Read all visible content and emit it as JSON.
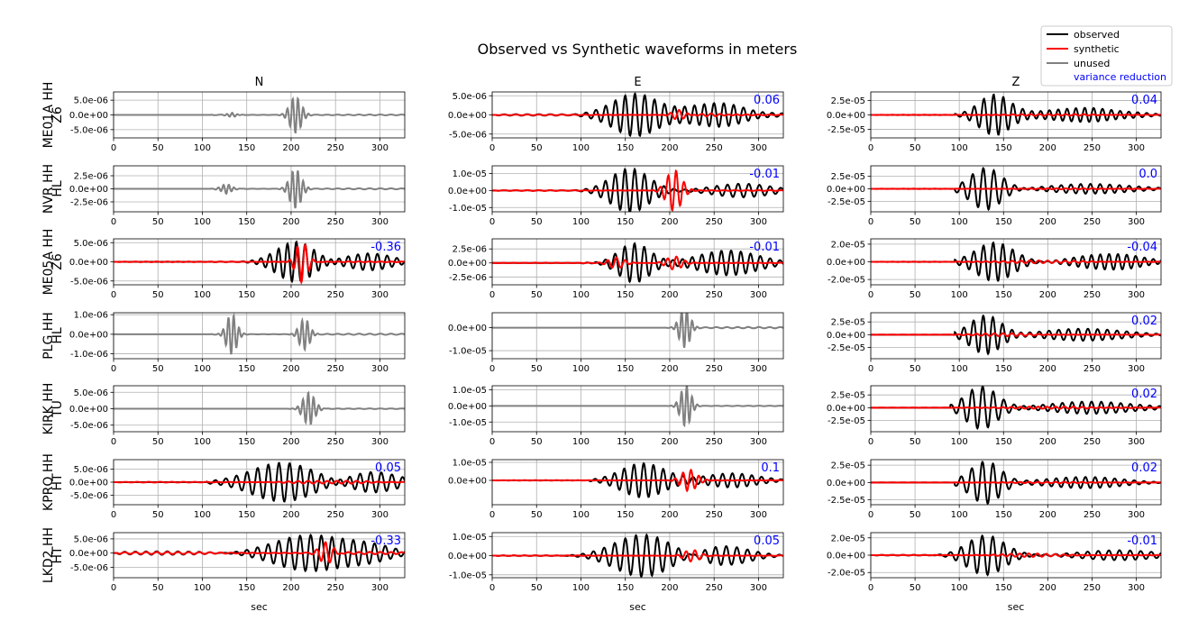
{
  "chart_data": {
    "type": "line",
    "title": "Observed vs Synthetic waveforms in meters",
    "component_titles": [
      "N",
      "E",
      "Z"
    ],
    "xlabel": "sec",
    "xlim": [
      0,
      328
    ],
    "xticks": [
      0,
      50,
      100,
      150,
      200,
      250,
      300
    ],
    "legend": {
      "placement": "top-right",
      "entries": [
        {
          "label": "observed",
          "color": "#000000"
        },
        {
          "label": "synthetic",
          "color": "#ff0000"
        },
        {
          "label": "unused",
          "color": "#808080"
        },
        {
          "label": "variance reduction",
          "color": "#0000ff"
        }
      ]
    },
    "grid": true,
    "stations": [
      {
        "label_line1": "Z6",
        "label_line2": "ME01A HH"
      },
      {
        "label_line1": "HL",
        "label_line2": "NVR HH"
      },
      {
        "label_line1": "Z6",
        "label_line2": "ME05A HH"
      },
      {
        "label_line1": "HL",
        "label_line2": "PLG HH"
      },
      {
        "label_line1": "TU",
        "label_line2": "KIRK HH"
      },
      {
        "label_line1": "HT",
        "label_line2": "KPRO HH"
      },
      {
        "label_line1": "HT",
        "label_line2": "LKD2 HH"
      }
    ],
    "panels": [
      {
        "row": 0,
        "col": 0,
        "used": false,
        "ylim": [
          -7.8e-06,
          7.8e-06
        ],
        "yticks": [
          5e-06,
          0,
          -5e-06
        ],
        "yticklabels": [
          "5.0e-06",
          "0.0e+00",
          "-5.0e-06"
        ],
        "vr": "",
        "obs": {
          "start": 110,
          "bursts": [
            [
              205,
              9,
              6.2e-06,
              6
            ],
            [
              133,
              7,
              7e-07,
              6
            ]
          ],
          "noise": 1.5e-07,
          "period": 12
        },
        "syn": null
      },
      {
        "row": 0,
        "col": 1,
        "used": true,
        "ylim": [
          -6e-06,
          6e-06
        ],
        "yticks": [
          5e-06,
          0,
          -5e-06
        ],
        "yticklabels": [
          "5.0e-06",
          "0.0e+00",
          "-5.0e-06"
        ],
        "vr": "0.06",
        "obs": {
          "start": 5,
          "bursts": [
            [
              160,
              35,
              5.5e-06,
              11
            ],
            [
              250,
              50,
              3e-06,
              11
            ]
          ],
          "noise": 2e-07,
          "period": 13
        },
        "syn": {
          "start": 5,
          "bursts": [
            [
              210,
              10,
              1.3e-06,
              10
            ],
            [
              250,
              25,
              3e-07,
              10
            ]
          ],
          "noise": 1e-07,
          "period": 13
        }
      },
      {
        "row": 0,
        "col": 2,
        "used": true,
        "ylim": [
          -4e-05,
          4e-05
        ],
        "yticks": [
          2.5e-05,
          0,
          -2.5e-05
        ],
        "yticklabels": [
          "2.5e-05",
          "0.0e+00",
          "-2.5e-05"
        ],
        "vr": "0.04",
        "obs": {
          "start": 95,
          "bursts": [
            [
              140,
              25,
              3.6e-05,
              11
            ],
            [
              240,
              60,
              1.2e-05,
              10
            ]
          ],
          "noise": 5e-07,
          "period": 12
        },
        "syn": {
          "start": 5,
          "bursts": [
            [
              200,
              60,
              1.5e-06,
              10
            ]
          ],
          "noise": 3e-07,
          "period": 12
        }
      },
      {
        "row": 1,
        "col": 0,
        "used": false,
        "ylim": [
          -4.4e-06,
          4.4e-06
        ],
        "yticks": [
          2.5e-06,
          0,
          -2.5e-06
        ],
        "yticklabels": [
          "2.5e-06",
          "0.0e+00",
          "-2.5e-06"
        ],
        "vr": "",
        "obs": {
          "start": 110,
          "bursts": [
            [
              205,
              9,
              3.8e-06,
              6
            ],
            [
              127,
              8,
              9e-07,
              6
            ]
          ],
          "noise": 1e-07,
          "period": 12
        },
        "syn": null
      },
      {
        "row": 1,
        "col": 1,
        "used": true,
        "ylim": [
          -1.25e-05,
          1.45e-05
        ],
        "yticks": [
          1e-05,
          0,
          -1e-05
        ],
        "yticklabels": [
          "1.0e-05",
          "0.0e+00",
          "-1.0e-05"
        ],
        "vr": "-0.01",
        "obs": {
          "start": 5,
          "bursts": [
            [
              155,
              30,
              1.3e-05,
              11
            ],
            [
              280,
              45,
              4e-06,
              12
            ]
          ],
          "noise": 1.5e-07,
          "period": 13
        },
        "syn": {
          "start": 5,
          "bursts": [
            [
              205,
              12,
              1.2e-05,
              9
            ]
          ],
          "noise": 2e-07,
          "period": 13
        }
      },
      {
        "row": 1,
        "col": 2,
        "used": true,
        "ylim": [
          -4.6e-05,
          4.6e-05
        ],
        "yticks": [
          2.5e-05,
          0,
          -2.5e-05
        ],
        "yticklabels": [
          "2.5e-05",
          "0.0e+00",
          "-2.5e-05"
        ],
        "vr": "0.0",
        "obs": {
          "start": 95,
          "bursts": [
            [
              130,
              25,
              4.2e-05,
              12
            ],
            [
              250,
              60,
              1e-05,
              11
            ]
          ],
          "noise": 4e-07,
          "period": 12
        },
        "syn": {
          "start": 5,
          "bursts": [
            [
              220,
              60,
              1e-06,
              10
            ]
          ],
          "noise": 3e-07,
          "period": 12
        }
      },
      {
        "row": 2,
        "col": 0,
        "used": true,
        "ylim": [
          -6e-06,
          6e-06
        ],
        "yticks": [
          5e-06,
          0,
          -5e-06
        ],
        "yticklabels": [
          "5.0e-06",
          "0.0e+00",
          "-5.0e-06"
        ],
        "vr": "-0.36",
        "obs": {
          "start": 110,
          "bursts": [
            [
              205,
              30,
              5.2e-06,
              10
            ],
            [
              290,
              35,
              2.2e-06,
              11
            ]
          ],
          "noise": 1e-07,
          "period": 12
        },
        "syn": {
          "start": 5,
          "bursts": [
            [
              212,
              9,
              5.3e-06,
              9
            ]
          ],
          "noise": 1e-07,
          "period": 12
        }
      },
      {
        "row": 2,
        "col": 1,
        "used": true,
        "ylim": [
          -3.9e-06,
          4.3e-06
        ],
        "yticks": [
          2.5e-06,
          0,
          -2.5e-06
        ],
        "yticklabels": [
          "2.5e-06",
          "0.0e+00",
          "-2.5e-06"
        ],
        "vr": "-0.01",
        "obs": {
          "start": 100,
          "bursts": [
            [
              160,
              25,
              3.5e-06,
              11
            ],
            [
              265,
              45,
              2.3e-06,
              11
            ]
          ],
          "noise": 1e-07,
          "period": 12
        },
        "syn": {
          "start": 5,
          "bursts": [
            [
              140,
              12,
              1e-06,
              10
            ],
            [
              205,
              12,
              1.2e-06,
              10
            ]
          ],
          "noise": 5e-08,
          "period": 12
        }
      },
      {
        "row": 2,
        "col": 2,
        "used": true,
        "ylim": [
          -2.6e-05,
          2.6e-05
        ],
        "yticks": [
          2e-05,
          0,
          -2e-05
        ],
        "yticklabels": [
          "2.0e-05",
          "0.0e+00",
          "-2.0e-05"
        ],
        "vr": "-0.04",
        "obs": {
          "start": 95,
          "bursts": [
            [
              140,
              30,
              2.2e-05,
              11
            ],
            [
              270,
              50,
              9e-06,
              10
            ]
          ],
          "noise": 3e-07,
          "period": 12
        },
        "syn": {
          "start": 5,
          "bursts": [
            [
              190,
              60,
              1.5e-06,
              10
            ]
          ],
          "noise": 2e-07,
          "period": 12
        }
      },
      {
        "row": 3,
        "col": 0,
        "used": false,
        "ylim": [
          -1.25e-06,
          1.1e-06
        ],
        "yticks": [
          1e-06,
          0,
          -1e-06
        ],
        "yticklabels": [
          "1.0e-06",
          "0.0e+00",
          "-1.0e-06"
        ],
        "vr": "",
        "obs": {
          "start": 110,
          "bursts": [
            [
              133,
              8,
              1.05e-06,
              6
            ],
            [
              215,
              8,
              8e-07,
              6
            ]
          ],
          "noise": 3e-08,
          "period": 12
        },
        "syn": null
      },
      {
        "row": 3,
        "col": 1,
        "used": false,
        "ylim": [
          -1.35e-05,
          6.5e-06
        ],
        "yticks": [
          0,
          -1e-05
        ],
        "yticklabels": [
          "0.0e+00",
          "-1.0e-05"
        ],
        "vr": "",
        "obs": {
          "start": 195,
          "bursts": [
            [
              217,
              8,
              9e-06,
              6
            ]
          ],
          "noise": 3e-07,
          "period": 12
        },
        "syn": null
      },
      {
        "row": 3,
        "col": 2,
        "used": true,
        "ylim": [
          -4.7e-05,
          4.3e-05
        ],
        "yticks": [
          2.5e-05,
          0,
          -2.5e-05
        ],
        "yticklabels": [
          "2.5e-05",
          "0.0e+00",
          "-2.5e-05"
        ],
        "vr": "0.02",
        "obs": {
          "start": 95,
          "bursts": [
            [
              130,
              25,
              3.8e-05,
              11
            ],
            [
              240,
              60,
              1.2e-05,
              11
            ]
          ],
          "noise": 4e-07,
          "period": 12
        },
        "syn": {
          "start": 5,
          "bursts": [
            [
              150,
              40,
              3e-06,
              10
            ]
          ],
          "noise": 3e-07,
          "period": 12
        }
      },
      {
        "row": 4,
        "col": 0,
        "used": false,
        "ylim": [
          -7e-06,
          7e-06
        ],
        "yticks": [
          5e-06,
          0,
          -5e-06
        ],
        "yticklabels": [
          "5.0e-06",
          "0.0e+00",
          "-5.0e-06"
        ],
        "vr": "",
        "obs": {
          "start": 195,
          "bursts": [
            [
              220,
              9,
              5e-06,
              6
            ]
          ],
          "noise": 1e-07,
          "period": 12
        },
        "syn": null
      },
      {
        "row": 4,
        "col": 1,
        "used": false,
        "ylim": [
          -1.6e-05,
          1.25e-05
        ],
        "yticks": [
          1e-05,
          0,
          -1e-05
        ],
        "yticklabels": [
          "1.0e-05",
          "0.0e+00",
          "-1.0e-05"
        ],
        "vr": "",
        "obs": {
          "start": 195,
          "bursts": [
            [
              218,
              8,
              1.3e-05,
              6
            ]
          ],
          "noise": 1.5e-07,
          "period": 12
        },
        "syn": null
      },
      {
        "row": 4,
        "col": 2,
        "used": true,
        "ylim": [
          -4.7e-05,
          4.3e-05
        ],
        "yticks": [
          2.5e-05,
          0,
          -2.5e-05
        ],
        "yticklabels": [
          "2.5e-05",
          "0.0e+00",
          "-2.5e-05"
        ],
        "vr": "0.02",
        "obs": {
          "start": 90,
          "bursts": [
            [
              125,
              25,
              4.2e-05,
              12
            ],
            [
              250,
              65,
              1.2e-05,
              11
            ]
          ],
          "noise": 4e-07,
          "period": 12
        },
        "syn": {
          "start": 5,
          "bursts": [
            [
              200,
              70,
              2e-06,
              10
            ]
          ],
          "noise": 3e-07,
          "period": 12
        }
      },
      {
        "row": 5,
        "col": 0,
        "used": true,
        "ylim": [
          -8.7e-06,
          8.7e-06
        ],
        "yticks": [
          5e-06,
          0,
          -5e-06
        ],
        "yticklabels": [
          "5.0e-06",
          "0.0e+00",
          "-5.0e-06"
        ],
        "vr": "0.05",
        "obs": {
          "start": 105,
          "bursts": [
            [
              190,
              50,
              7.5e-06,
              12
            ],
            [
              290,
              40,
              4e-06,
              12
            ]
          ],
          "noise": 2e-07,
          "period": 13
        },
        "syn": {
          "start": 5,
          "bursts": [
            [
              240,
              50,
              6e-07,
              11
            ]
          ],
          "noise": 1.5e-07,
          "period": 13
        }
      },
      {
        "row": 5,
        "col": 1,
        "used": true,
        "ylim": [
          -1.35e-05,
          1.15e-05
        ],
        "yticks": [
          1e-05,
          0
        ],
        "yticklabels": [
          "1.0e-05",
          "0.0e+00"
        ],
        "vr": "0.1",
        "obs": {
          "start": 110,
          "bursts": [
            [
              170,
              35,
              9.5e-06,
              11
            ],
            [
              270,
              40,
              4e-06,
              11
            ]
          ],
          "noise": 1e-07,
          "period": 12
        },
        "syn": {
          "start": 5,
          "bursts": [
            [
              222,
              12,
              6e-06,
              9
            ]
          ],
          "noise": 1e-07,
          "period": 12
        }
      },
      {
        "row": 5,
        "col": 2,
        "used": true,
        "ylim": [
          -3.2e-05,
          3.3e-05
        ],
        "yticks": [
          2.5e-05,
          0,
          -2.5e-05
        ],
        "yticklabels": [
          "2.5e-05",
          "0.0e+00",
          "-2.5e-05"
        ],
        "vr": "0.02",
        "obs": {
          "start": 95,
          "bursts": [
            [
              130,
              25,
              3.1e-05,
              12
            ],
            [
              240,
              60,
              8e-06,
              11
            ]
          ],
          "noise": 3e-07,
          "period": 12
        },
        "syn": {
          "start": 5,
          "bursts": [
            [
              200,
              60,
              1e-06,
              10
            ]
          ],
          "noise": 2e-07,
          "period": 12
        }
      },
      {
        "row": 6,
        "col": 0,
        "used": true,
        "ylim": [
          -8.7e-06,
          7.2e-06
        ],
        "yticks": [
          5e-06,
          0,
          -5e-06
        ],
        "yticklabels": [
          "5.0e-06",
          "0.0e+00",
          "-5.0e-06"
        ],
        "vr": "-0.33",
        "obs": {
          "start": 5,
          "bursts": [
            [
              220,
              55,
              6.5e-06,
              12
            ],
            [
              290,
              40,
              3e-06,
              12
            ]
          ],
          "noise": 6e-07,
          "period": 12
        },
        "syn": {
          "start": 5,
          "bursts": [
            [
              240,
              10,
              3.8e-06,
              10
            ]
          ],
          "noise": 4e-07,
          "period": 12
        }
      },
      {
        "row": 6,
        "col": 1,
        "used": true,
        "ylim": [
          -1.15e-05,
          1.2e-05
        ],
        "yticks": [
          1e-05,
          0,
          -1e-05
        ],
        "yticklabels": [
          "1.0e-05",
          "0.0e+00",
          "-1.0e-05"
        ],
        "vr": "0.05",
        "obs": {
          "start": 5,
          "bursts": [
            [
              170,
              45,
              1.1e-05,
              12
            ],
            [
              260,
              40,
              5e-06,
              12
            ]
          ],
          "noise": 1.5e-07,
          "period": 12
        },
        "syn": {
          "start": 5,
          "bursts": [
            [
              225,
              12,
              3e-06,
              10
            ]
          ],
          "noise": 1.5e-07,
          "period": 12
        }
      },
      {
        "row": 6,
        "col": 2,
        "used": true,
        "ylim": [
          -2.6e-05,
          2.6e-05
        ],
        "yticks": [
          2e-05,
          0,
          -2e-05
        ],
        "yticklabels": [
          "2.0e-05",
          "0.0e+00",
          "-2.0e-05"
        ],
        "vr": "-0.01",
        "obs": {
          "start": 5,
          "bursts": [
            [
              130,
              30,
              2.3e-05,
              12
            ],
            [
              280,
              60,
              6e-06,
              12
            ]
          ],
          "noise": 4e-07,
          "period": 12
        },
        "syn": {
          "start": 5,
          "bursts": [
            [
              180,
              40,
              2e-06,
              10
            ]
          ],
          "noise": 2e-07,
          "period": 12
        }
      }
    ]
  }
}
